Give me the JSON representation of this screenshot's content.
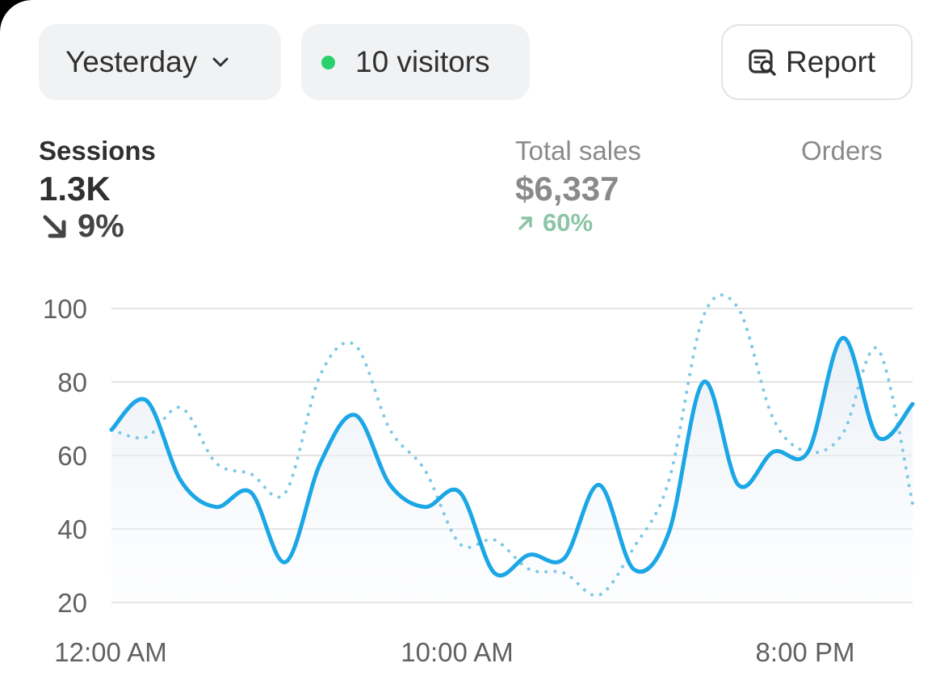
{
  "toolbar": {
    "period_label": "Yesterday",
    "visitors_label": "10 visitors",
    "report_label": "Report"
  },
  "metrics": {
    "sessions": {
      "label": "Sessions",
      "value": "1.3K",
      "change": "9%",
      "direction": "down"
    },
    "total_sales": {
      "label": "Total sales",
      "value": "$6,337",
      "change": "60%",
      "direction": "up"
    },
    "orders": {
      "label": "Orders"
    }
  },
  "colors": {
    "primary_line": "#1ba6e6",
    "comparison_line": "#7cc8e6",
    "visitor_dot": "#29d16c",
    "positive_change": "#8cc4a6"
  },
  "chart_data": {
    "type": "line",
    "x_ticks": [
      "12:00 AM",
      "10:00 AM",
      "8:00 PM"
    ],
    "y_ticks": [
      100,
      80,
      60,
      40,
      20
    ],
    "ylim": [
      20,
      100
    ],
    "grid": true,
    "series": [
      {
        "style": "solid",
        "values": [
          67,
          75,
          53,
          46,
          50,
          31,
          58,
          71,
          52,
          46,
          50,
          28,
          33,
          32,
          52,
          29,
          39,
          80,
          52,
          61,
          61,
          92,
          65,
          74
        ]
      },
      {
        "style": "dotted",
        "values": [
          67,
          65,
          73,
          58,
          55,
          50,
          82,
          90,
          67,
          56,
          36,
          37,
          29,
          28,
          22,
          35,
          53,
          98,
          100,
          70,
          61,
          66,
          89,
          47
        ]
      }
    ]
  }
}
